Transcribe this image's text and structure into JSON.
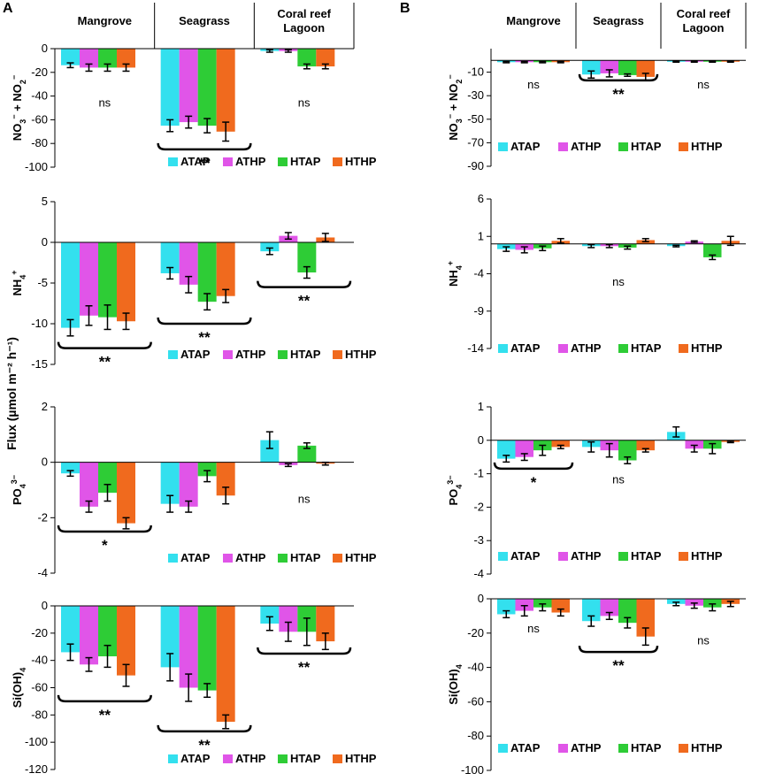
{
  "figure": {
    "panels": [
      "A",
      "B"
    ],
    "shared_ylabel": "Flux (µmol m⁻² h⁻¹)",
    "habitats": [
      "Mangrove",
      "Seagrass",
      "Coral reef Lagoon"
    ],
    "habitat_label_lines": [
      [
        "Mangrove"
      ],
      [
        "Seagrass"
      ],
      [
        "Coral reef",
        "Lagoon"
      ]
    ],
    "treatments": [
      "ATAP",
      "ATHP",
      "HTAP",
      "HTHP"
    ],
    "colors": {
      "ATAP": "#33e0ee",
      "ATHP": "#e055e8",
      "HTAP": "#2ecc36",
      "HTHP": "#f06a1e"
    }
  },
  "chart_data": [
    {
      "id": "A-no3",
      "panel": "A",
      "type": "bar",
      "ylabel": "NO3- + NO2-",
      "ylim": [
        -100,
        0
      ],
      "yticks": [
        0,
        -20,
        -40,
        -60,
        -80,
        -100
      ],
      "show_headers": true,
      "legend_labels": [
        "ATAP",
        "ATHP",
        "HTAP",
        "HTHP"
      ],
      "series": [
        {
          "name": "ATAP",
          "values": [
            -14,
            -65,
            -2
          ],
          "errors": [
            2,
            5,
            1
          ]
        },
        {
          "name": "ATHP",
          "values": [
            -16,
            -62,
            -2
          ],
          "errors": [
            3,
            5,
            1
          ]
        },
        {
          "name": "HTAP",
          "values": [
            -16,
            -65,
            -15
          ],
          "errors": [
            3,
            6,
            2
          ]
        },
        {
          "name": "HTHP",
          "values": [
            -16,
            -70,
            -15
          ],
          "errors": [
            3,
            8,
            2
          ]
        }
      ],
      "significance": [
        {
          "group": "Mangrove",
          "label": "ns",
          "bracket": false,
          "y": -45
        },
        {
          "group": "Seagrass",
          "label": "**",
          "bracket": true,
          "y": -85
        },
        {
          "group": "Coral reef Lagoon",
          "label": "ns",
          "bracket": false,
          "y": -45
        }
      ]
    },
    {
      "id": "A-nh4",
      "panel": "A",
      "type": "bar",
      "ylabel": "NH4+",
      "ylim": [
        -15,
        5
      ],
      "yticks": [
        5,
        0,
        -5,
        -10,
        -15
      ],
      "show_headers": false,
      "legend_labels": [
        "ATAP",
        "ATHP",
        "HTAP",
        "HTHP"
      ],
      "series": [
        {
          "name": "ATAP",
          "values": [
            -10.5,
            -3.8,
            -1.1
          ],
          "errors": [
            1,
            0.7,
            0.4
          ]
        },
        {
          "name": "ATHP",
          "values": [
            -9,
            -5.2,
            0.8
          ],
          "errors": [
            1.2,
            1,
            0.4
          ]
        },
        {
          "name": "HTAP",
          "values": [
            -9.2,
            -7.3,
            -3.7
          ],
          "errors": [
            1.5,
            1,
            0.7
          ]
        },
        {
          "name": "HTHP",
          "values": [
            -9.7,
            -6.6,
            0.6
          ],
          "errors": [
            1,
            0.8,
            0.5
          ]
        }
      ],
      "significance": [
        {
          "group": "Mangrove",
          "label": "**",
          "bracket": true,
          "y": -13
        },
        {
          "group": "Seagrass",
          "label": "**",
          "bracket": true,
          "y": -10
        },
        {
          "group": "Coral reef Lagoon",
          "label": "**",
          "bracket": true,
          "y": -5.5
        }
      ]
    },
    {
      "id": "A-po4",
      "panel": "A",
      "type": "bar",
      "ylabel": "PO4 3-",
      "ylim": [
        -4,
        2
      ],
      "yticks": [
        2,
        0,
        -2,
        -4
      ],
      "show_headers": false,
      "legend_labels": [
        "ATAP",
        "ATHP",
        "HTAP",
        "HTHP"
      ],
      "series": [
        {
          "name": "ATAP",
          "values": [
            -0.4,
            -1.5,
            0.8
          ],
          "errors": [
            0.1,
            0.3,
            0.3
          ]
        },
        {
          "name": "ATHP",
          "values": [
            -1.6,
            -1.6,
            -0.1
          ],
          "errors": [
            0.2,
            0.2,
            0.05
          ]
        },
        {
          "name": "HTAP",
          "values": [
            -1.1,
            -0.5,
            0.6
          ],
          "errors": [
            0.3,
            0.2,
            0.1
          ]
        },
        {
          "name": "HTHP",
          "values": [
            -2.2,
            -1.2,
            -0.05
          ],
          "errors": [
            0.2,
            0.3,
            0.05
          ]
        }
      ],
      "significance": [
        {
          "group": "Mangrove",
          "label": "*",
          "bracket": true,
          "y": -2.5
        },
        {
          "group": "Coral reef Lagoon",
          "label": "ns",
          "bracket": false,
          "y": -1.3
        }
      ]
    },
    {
      "id": "A-si",
      "panel": "A",
      "type": "bar",
      "ylabel": "Si(OH)4",
      "ylim": [
        -120,
        0
      ],
      "yticks": [
        0,
        -20,
        -40,
        -60,
        -80,
        -100,
        -120
      ],
      "show_headers": false,
      "legend_labels": [
        "ATAP",
        "ATHP",
        "HTAP",
        "HTHP"
      ],
      "series": [
        {
          "name": "ATAP",
          "values": [
            -34,
            -45,
            -13
          ],
          "errors": [
            6,
            10,
            5
          ]
        },
        {
          "name": "ATHP",
          "values": [
            -43,
            -60,
            -19
          ],
          "errors": [
            5,
            10,
            7
          ]
        },
        {
          "name": "HTAP",
          "values": [
            -37,
            -62,
            -19
          ],
          "errors": [
            8,
            5,
            10
          ]
        },
        {
          "name": "HTHP",
          "values": [
            -51,
            -85,
            -26
          ],
          "errors": [
            8,
            5,
            6
          ]
        }
      ],
      "significance": [
        {
          "group": "Mangrove",
          "label": "**",
          "bracket": true,
          "y": -70
        },
        {
          "group": "Seagrass",
          "label": "**",
          "bracket": true,
          "y": -92
        },
        {
          "group": "Coral reef Lagoon",
          "label": "**",
          "bracket": true,
          "y": -35
        }
      ]
    },
    {
      "id": "B-no3",
      "panel": "B",
      "type": "bar",
      "ylabel": "NO3- + NO2-",
      "ylim": [
        -90,
        10
      ],
      "yticks": [
        -10,
        -30,
        -50,
        -70,
        -90
      ],
      "show_headers": true,
      "legend_labels": [
        "ATAP",
        "ATHP",
        "HTAP",
        "HTHP"
      ],
      "series": [
        {
          "name": "ATAP",
          "values": [
            -1.5,
            -12,
            -1
          ],
          "errors": [
            0.5,
            3,
            0.5
          ]
        },
        {
          "name": "ATHP",
          "values": [
            -1.5,
            -11,
            -1
          ],
          "errors": [
            0.5,
            3,
            0.5
          ]
        },
        {
          "name": "HTAP",
          "values": [
            -1.5,
            -12.5,
            -1
          ],
          "errors": [
            0.5,
            1,
            0.5
          ]
        },
        {
          "name": "HTHP",
          "values": [
            -1.5,
            -14,
            -1
          ],
          "errors": [
            0.5,
            3,
            0.5
          ]
        }
      ],
      "significance": [
        {
          "group": "Mangrove",
          "label": "ns",
          "bracket": false,
          "y": -20
        },
        {
          "group": "Seagrass",
          "label": "**",
          "bracket": true,
          "y": -17
        },
        {
          "group": "Coral reef Lagoon",
          "label": "ns",
          "bracket": false,
          "y": -20
        }
      ]
    },
    {
      "id": "B-nh4",
      "panel": "B",
      "type": "bar",
      "ylabel": "NH4+",
      "ylim": [
        -14,
        6
      ],
      "yticks": [
        6,
        1,
        -4,
        -9,
        -14
      ],
      "show_headers": false,
      "legend_labels": [
        "ATAP",
        "ATHP",
        "HTAP",
        "HTHP"
      ],
      "series": [
        {
          "name": "ATAP",
          "values": [
            -0.7,
            -0.3,
            -0.3
          ],
          "errors": [
            0.3,
            0.2,
            0.1
          ]
        },
        {
          "name": "ATHP",
          "values": [
            -0.8,
            -0.3,
            0.3
          ],
          "errors": [
            0.4,
            0.2,
            0.1
          ]
        },
        {
          "name": "HTAP",
          "values": [
            -0.6,
            -0.5,
            -1.8
          ],
          "errors": [
            0.3,
            0.2,
            0.3
          ]
        },
        {
          "name": "HTHP",
          "values": [
            0.4,
            0.5,
            0.4
          ],
          "errors": [
            0.3,
            0.2,
            0.6
          ]
        }
      ],
      "significance": [
        {
          "group": "Seagrass",
          "label": "ns",
          "bracket": false,
          "y": -5
        }
      ]
    },
    {
      "id": "B-po4",
      "panel": "B",
      "type": "bar",
      "ylabel": "PO4 3-",
      "ylim": [
        -4,
        1
      ],
      "yticks": [
        1,
        0,
        -1,
        -2,
        -3,
        -4
      ],
      "show_headers": false,
      "legend_labels": [
        "ATAP",
        "ATHP",
        "HTAP",
        "HTHP"
      ],
      "series": [
        {
          "name": "ATAP",
          "values": [
            -0.55,
            -0.2,
            0.25
          ],
          "errors": [
            0.1,
            0.15,
            0.15
          ]
        },
        {
          "name": "ATHP",
          "values": [
            -0.5,
            -0.3,
            -0.25
          ],
          "errors": [
            0.1,
            0.2,
            0.1
          ]
        },
        {
          "name": "HTAP",
          "values": [
            -0.3,
            -0.6,
            -0.25
          ],
          "errors": [
            0.15,
            0.1,
            0.15
          ]
        },
        {
          "name": "HTHP",
          "values": [
            -0.2,
            -0.3,
            -0.05
          ],
          "errors": [
            0.05,
            0.05,
            0.02
          ]
        }
      ],
      "significance": [
        {
          "group": "Mangrove",
          "label": "*",
          "bracket": true,
          "y": -0.85
        },
        {
          "group": "Seagrass",
          "label": "ns",
          "bracket": false,
          "y": -1.15
        }
      ]
    },
    {
      "id": "B-si",
      "panel": "B",
      "type": "bar",
      "ylabel": "Si(OH)4",
      "ylim": [
        -100,
        0
      ],
      "yticks": [
        0,
        -20,
        -40,
        -60,
        -80,
        -100
      ],
      "show_headers": false,
      "legend_labels": [
        "ATAP",
        "ATHP",
        "HTAP",
        "HTHP"
      ],
      "series": [
        {
          "name": "ATAP",
          "values": [
            -9,
            -13,
            -3
          ],
          "errors": [
            2,
            3,
            1
          ]
        },
        {
          "name": "ATHP",
          "values": [
            -7,
            -10,
            -4
          ],
          "errors": [
            3,
            2,
            1.5
          ]
        },
        {
          "name": "HTAP",
          "values": [
            -5,
            -14,
            -5
          ],
          "errors": [
            2,
            3,
            2
          ]
        },
        {
          "name": "HTHP",
          "values": [
            -8,
            -22,
            -3
          ],
          "errors": [
            2,
            5,
            1.5
          ]
        }
      ],
      "significance": [
        {
          "group": "Mangrove",
          "label": "ns",
          "bracket": false,
          "y": -17
        },
        {
          "group": "Seagrass",
          "label": "**",
          "bracket": true,
          "y": -31
        },
        {
          "group": "Coral reef Lagoon",
          "label": "ns",
          "bracket": false,
          "y": -24
        }
      ]
    }
  ]
}
